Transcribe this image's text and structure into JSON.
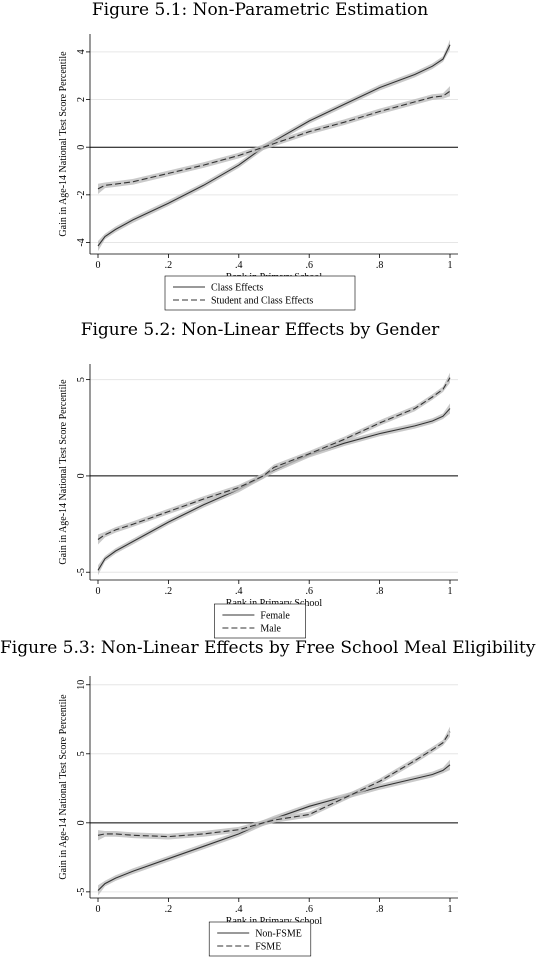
{
  "chart_data": [
    {
      "type": "line",
      "title": "Figure 5.1: Non-Parametric Estimation",
      "xlabel": "Rank in Primary School",
      "ylabel": "Gain in Age-14 National Test Score Percentile",
      "xlim": [
        0,
        1
      ],
      "ylim": [
        -4.4,
        4.5
      ],
      "xticks": [
        0,
        0.2,
        0.4,
        0.6,
        0.8,
        1
      ],
      "xtick_labels": [
        "0",
        ".2",
        ".4",
        ".6",
        ".8",
        "1"
      ],
      "yticks": [
        -4,
        -2,
        0,
        2,
        4
      ],
      "ytick_labels": [
        "-4",
        "-2",
        "0",
        "2",
        "4"
      ],
      "grid": true,
      "legend_position": "bottom",
      "x": [
        0,
        0.02,
        0.05,
        0.1,
        0.2,
        0.3,
        0.4,
        0.47,
        0.5,
        0.6,
        0.7,
        0.8,
        0.9,
        0.95,
        0.98,
        1
      ],
      "series": [
        {
          "name": "Class Effects",
          "style": "solid",
          "values": [
            -4.15,
            -3.75,
            -3.45,
            -3.05,
            -2.35,
            -1.6,
            -0.75,
            0,
            0.25,
            1.1,
            1.8,
            2.5,
            3.05,
            3.4,
            3.7,
            4.3
          ]
        },
        {
          "name": "Student and Class Effects",
          "style": "dashed",
          "values": [
            -1.75,
            -1.6,
            -1.55,
            -1.45,
            -1.1,
            -0.75,
            -0.35,
            0,
            0.15,
            0.65,
            1.05,
            1.5,
            1.9,
            2.1,
            2.15,
            2.35
          ]
        }
      ]
    },
    {
      "type": "line",
      "title": "Figure 5.2: Non-Linear Effects by Gender",
      "xlabel": "Rank in Primary School",
      "ylabel": "Gain in Age-14 National Test Score Percentile",
      "xlim": [
        0,
        1
      ],
      "ylim": [
        -5.3,
        5.5
      ],
      "xticks": [
        0,
        0.2,
        0.4,
        0.6,
        0.8,
        1
      ],
      "xtick_labels": [
        "0",
        ".2",
        ".4",
        ".6",
        ".8",
        "1"
      ],
      "yticks": [
        -5,
        0,
        5
      ],
      "ytick_labels": [
        "-5",
        "0",
        "5"
      ],
      "grid": true,
      "legend_position": "bottom",
      "x": [
        0,
        0.02,
        0.05,
        0.1,
        0.2,
        0.3,
        0.4,
        0.47,
        0.5,
        0.6,
        0.7,
        0.8,
        0.9,
        0.95,
        0.98,
        1
      ],
      "series": [
        {
          "name": "Female",
          "style": "solid",
          "values": [
            -4.9,
            -4.3,
            -3.9,
            -3.4,
            -2.4,
            -1.5,
            -0.7,
            0,
            0.3,
            1.1,
            1.7,
            2.2,
            2.6,
            2.85,
            3.1,
            3.5
          ]
        },
        {
          "name": "Male",
          "style": "dashed",
          "values": [
            -3.3,
            -3.05,
            -2.8,
            -2.5,
            -1.85,
            -1.2,
            -0.6,
            0,
            0.45,
            1.15,
            1.9,
            2.75,
            3.5,
            4.1,
            4.5,
            5.1
          ]
        }
      ]
    },
    {
      "type": "line",
      "title": "Figure 5.3: Non-Linear Effects by Free School Meal Eligibility",
      "xlabel": "Rank in Primary School",
      "ylabel": "Gain in Age-14 National Test Score Percentile",
      "xlim": [
        0,
        1
      ],
      "ylim": [
        -5.3,
        10.2
      ],
      "xticks": [
        0,
        0.2,
        0.4,
        0.6,
        0.8,
        1
      ],
      "xtick_labels": [
        "0",
        ".2",
        ".4",
        ".6",
        ".8",
        "1"
      ],
      "yticks": [
        -5,
        0,
        5,
        10
      ],
      "ytick_labels": [
        "-5",
        "0",
        "5",
        "10"
      ],
      "grid": true,
      "legend_position": "bottom",
      "x": [
        0,
        0.02,
        0.05,
        0.1,
        0.2,
        0.3,
        0.4,
        0.47,
        0.5,
        0.6,
        0.7,
        0.8,
        0.9,
        0.95,
        0.98,
        1
      ],
      "series": [
        {
          "name": "Non-FSME",
          "style": "solid",
          "values": [
            -4.9,
            -4.4,
            -4.0,
            -3.5,
            -2.6,
            -1.7,
            -0.8,
            0,
            0.3,
            1.2,
            1.9,
            2.6,
            3.2,
            3.5,
            3.8,
            4.2
          ]
        },
        {
          "name": "FSME",
          "style": "dashed",
          "values": [
            -0.9,
            -0.8,
            -0.8,
            -0.9,
            -1.0,
            -0.8,
            -0.5,
            0,
            0.2,
            0.6,
            1.8,
            3.0,
            4.5,
            5.3,
            5.8,
            6.6
          ]
        }
      ]
    }
  ]
}
